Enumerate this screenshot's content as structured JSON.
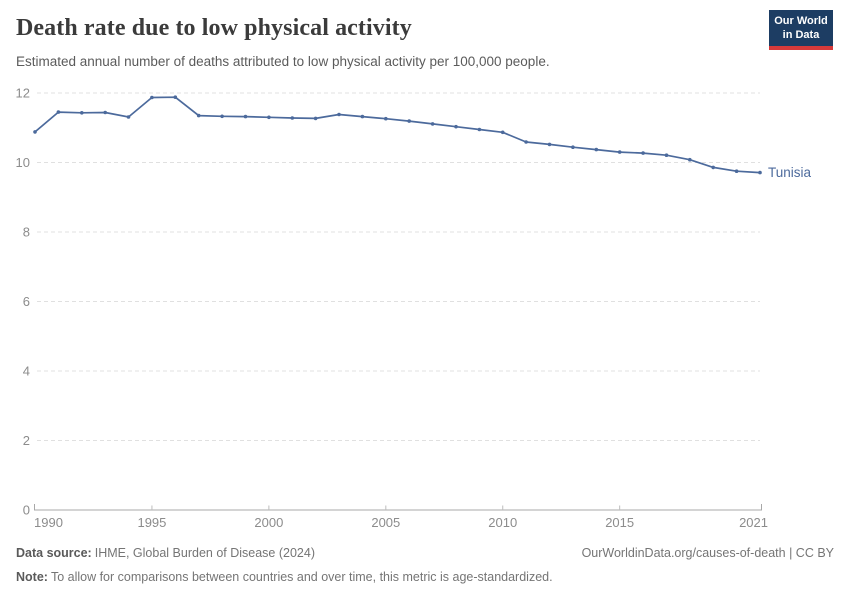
{
  "header": {
    "title": "Death rate due to low physical activity",
    "subtitle": "Estimated annual number of deaths attributed to low physical activity per 100,000 people.",
    "logo_line1": "Our World",
    "logo_line2": "in Data",
    "logo_bg_color": "#1d3d63",
    "logo_stripe_color": "#d73a3a"
  },
  "chart_data": {
    "type": "line",
    "title": "Death rate due to low physical activity",
    "xlabel": "",
    "ylabel": "",
    "x": [
      1990,
      1991,
      1992,
      1993,
      1994,
      1995,
      1996,
      1997,
      1998,
      1999,
      2000,
      2001,
      2002,
      2003,
      2004,
      2005,
      2006,
      2007,
      2008,
      2009,
      2010,
      2011,
      2012,
      2013,
      2014,
      2015,
      2016,
      2017,
      2018,
      2019,
      2020,
      2021
    ],
    "series": [
      {
        "name": "Tunisia",
        "color": "#4C6A9C",
        "values": [
          10.88,
          11.45,
          11.43,
          11.44,
          11.31,
          11.87,
          11.88,
          11.35,
          11.33,
          11.32,
          11.3,
          11.28,
          11.27,
          11.38,
          11.32,
          11.26,
          11.19,
          11.11,
          11.03,
          10.95,
          10.87,
          10.59,
          10.52,
          10.44,
          10.37,
          10.3,
          10.27,
          10.21,
          10.08,
          9.86,
          9.75,
          9.71
        ]
      }
    ],
    "ylim": [
      0,
      12
    ],
    "yticks": [
      0,
      2,
      4,
      6,
      8,
      10,
      12
    ],
    "xticks": [
      1990,
      1995,
      2000,
      2005,
      2010,
      2015,
      2021
    ],
    "grid": "horizontal-dashed",
    "legend_position": "end-of-line-label",
    "grid_color": "#e0e0e0",
    "axis_color": "#a8a8a8",
    "tick_label_color": "#8c8c8c"
  },
  "footer": {
    "source_label": "Data source:",
    "source_value": "IHME, Global Burden of Disease (2024)",
    "link": "OurWorldinData.org/causes-of-death | CC BY",
    "note_label": "Note:",
    "note_value": "To allow for comparisons between countries and over time, this metric is age-standardized."
  }
}
